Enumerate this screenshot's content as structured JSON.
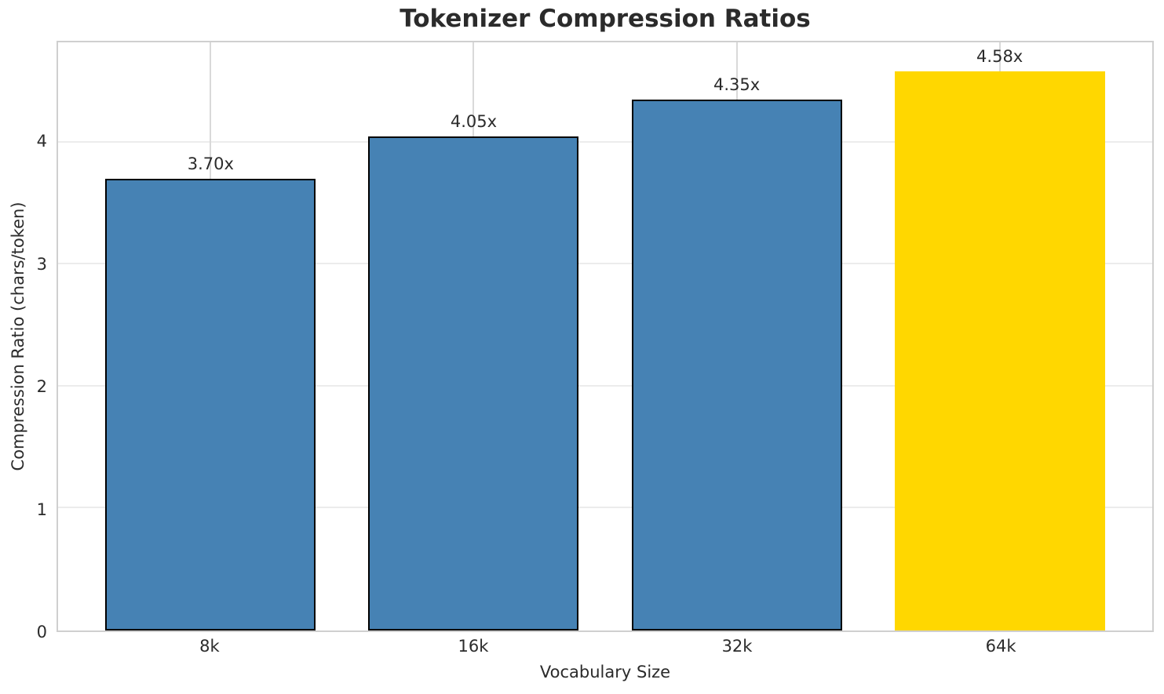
{
  "chart_data": {
    "type": "bar",
    "title": "Tokenizer Compression Ratios",
    "xlabel": "Vocabulary Size",
    "ylabel": "Compression Ratio (chars/token)",
    "categories": [
      "8k",
      "16k",
      "32k",
      "64k"
    ],
    "values": [
      3.7,
      4.05,
      4.35,
      4.58
    ],
    "bar_labels": [
      "3.70x",
      "4.05x",
      "4.35x",
      "4.58x"
    ],
    "yticks": [
      0,
      1,
      2,
      3,
      4
    ],
    "ylim": [
      0,
      4.82
    ],
    "xlim": [
      -0.58,
      3.58
    ],
    "bar_width_units": 0.8,
    "grid": true,
    "legend": false,
    "bar_colors": [
      "#4682B4",
      "#4682B4",
      "#4682B4",
      "#FFD700"
    ],
    "bar_edge_colors": [
      "#000000",
      "#000000",
      "#000000",
      "none"
    ],
    "highlight_index": 3,
    "style_colors": {
      "text": "#2b2b2b",
      "spine": "#cfcfcf",
      "grid_vertical": "#d9d9d9",
      "grid_horizontal": "#ececec",
      "background": "#ffffff"
    }
  }
}
